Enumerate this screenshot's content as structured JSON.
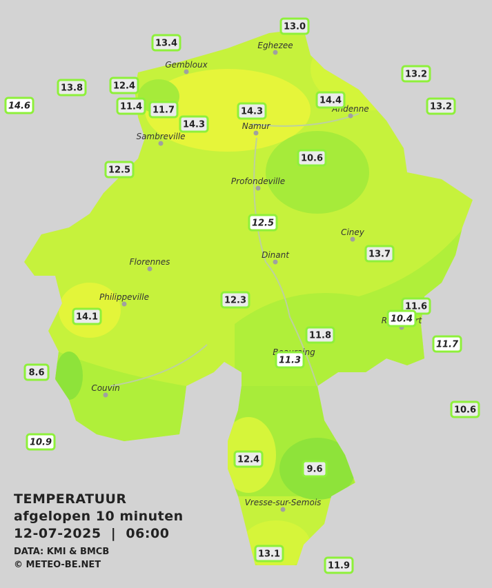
{
  "map": {
    "stations": [
      {
        "label": "13.0",
        "italic": false
      },
      {
        "label": "13.4",
        "italic": false
      },
      {
        "label": "13.2",
        "italic": false
      },
      {
        "label": "13.8",
        "italic": false
      },
      {
        "label": "12.4",
        "italic": false
      },
      {
        "label": "14.4",
        "italic": false
      },
      {
        "label": "14.6",
        "italic": true
      },
      {
        "label": "11.4",
        "italic": false
      },
      {
        "label": "11.7",
        "italic": false
      },
      {
        "label": "14.3",
        "italic": false
      },
      {
        "label": "13.2",
        "italic": false
      },
      {
        "label": "14.3",
        "italic": false
      },
      {
        "label": "10.6",
        "italic": false
      },
      {
        "label": "12.5",
        "italic": false
      },
      {
        "label": "12.5",
        "italic": true
      },
      {
        "label": "13.7",
        "italic": false
      },
      {
        "label": "12.3",
        "italic": false
      },
      {
        "label": "11.6",
        "italic": false
      },
      {
        "label": "14.1",
        "italic": false
      },
      {
        "label": "10.4",
        "italic": true
      },
      {
        "label": "11.8",
        "italic": false
      },
      {
        "label": "11.7",
        "italic": true
      },
      {
        "label": "11.3",
        "italic": true
      },
      {
        "label": "8.6",
        "italic": false
      },
      {
        "label": "10.6",
        "italic": false
      },
      {
        "label": "10.9",
        "italic": true
      },
      {
        "label": "12.4",
        "italic": false
      },
      {
        "label": "9.6",
        "italic": false
      },
      {
        "label": "13.1",
        "italic": false
      },
      {
        "label": "11.9",
        "italic": false
      }
    ],
    "cities": [
      "Eghezee",
      "Gembloux",
      "Andenne",
      "Namur",
      "Sambreville",
      "Profondeville",
      "Ciney",
      "Dinant",
      "Florennes",
      "Philippeville",
      "Rochefort",
      "Beauraing",
      "Couvin",
      "Vresse-sur-Semois"
    ]
  },
  "legend": {
    "title": "TEMPERATUUR",
    "subtitle": "afgelopen 10 minuten",
    "datetime": "12-07-2025  |  06:00",
    "source": "DATA: KMI & BMCB",
    "credit": "© METEO-BE.NET"
  }
}
